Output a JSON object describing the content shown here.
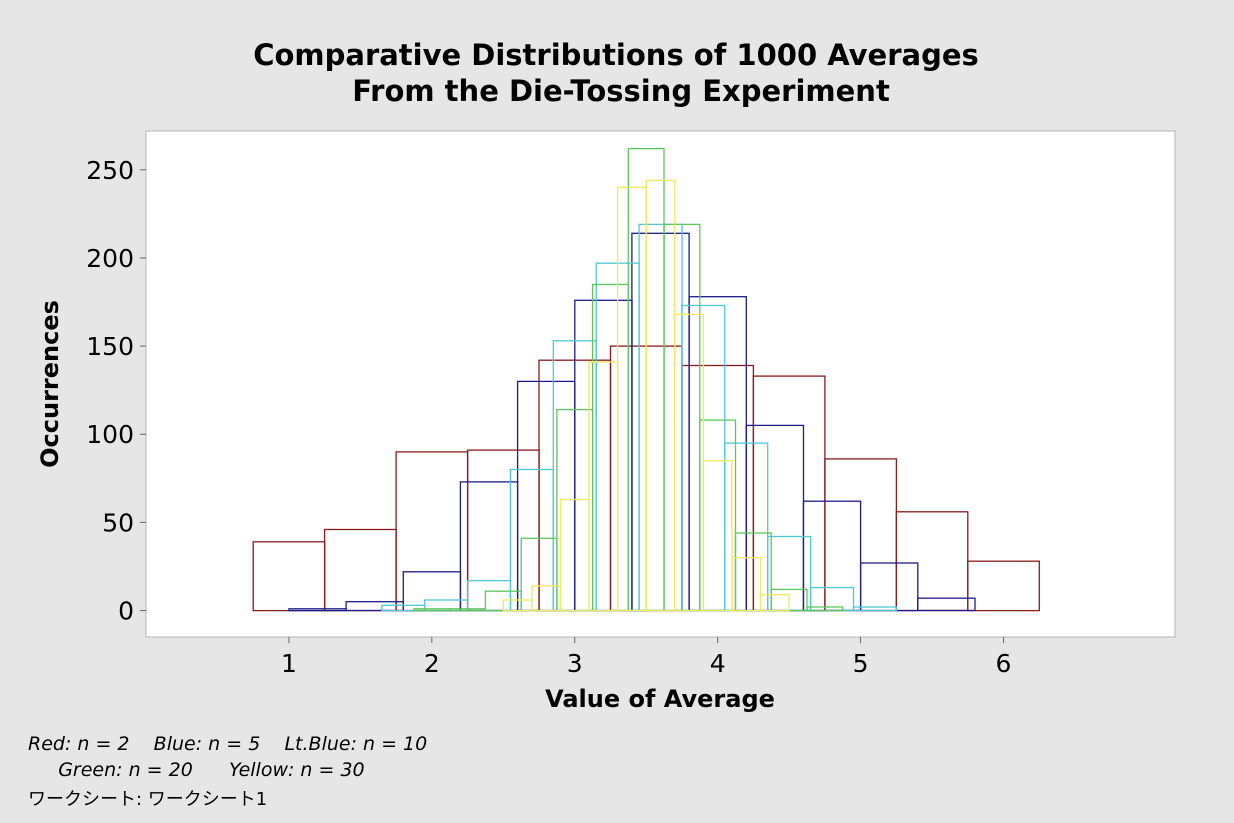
{
  "chart_data": {
    "type": "histogram",
    "title_line1": "Comparative Distributions of 1000 Averages",
    "title_line2": "From the Die-Tossing Experiment",
    "xlabel": "Value of Average",
    "ylabel": "Occurrences",
    "xlim": [
      0,
      7.2
    ],
    "ylim": [
      -15,
      272
    ],
    "xticks": [
      1,
      2,
      3,
      4,
      5,
      6
    ],
    "yticks": [
      0,
      50,
      100,
      150,
      200,
      250
    ],
    "grid": false,
    "series": [
      {
        "name": "Red: n = 2",
        "color": "#8b1a1a",
        "bin_width": 0.5,
        "bins": [
          {
            "start": 0.75,
            "count": 39
          },
          {
            "start": 1.25,
            "count": 46
          },
          {
            "start": 1.75,
            "count": 90
          },
          {
            "start": 2.25,
            "count": 91
          },
          {
            "start": 2.75,
            "count": 142
          },
          {
            "start": 3.25,
            "count": 150
          },
          {
            "start": 3.75,
            "count": 139
          },
          {
            "start": 4.25,
            "count": 133
          },
          {
            "start": 4.75,
            "count": 86
          },
          {
            "start": 5.25,
            "count": 56
          },
          {
            "start": 5.75,
            "count": 28
          }
        ]
      },
      {
        "name": "Blue: n = 5",
        "color": "#1c1c8a",
        "bin_width": 0.4,
        "bins": [
          {
            "start": 1.0,
            "count": 1
          },
          {
            "start": 1.4,
            "count": 5
          },
          {
            "start": 1.8,
            "count": 22
          },
          {
            "start": 2.2,
            "count": 73
          },
          {
            "start": 2.6,
            "count": 130
          },
          {
            "start": 3.0,
            "count": 176
          },
          {
            "start": 3.4,
            "count": 214
          },
          {
            "start": 3.8,
            "count": 178
          },
          {
            "start": 4.2,
            "count": 105
          },
          {
            "start": 4.6,
            "count": 62
          },
          {
            "start": 5.0,
            "count": 27
          },
          {
            "start": 5.4,
            "count": 7
          }
        ]
      },
      {
        "name": "Lt.Blue: n = 10",
        "color": "#4fc8d6",
        "bin_width": 0.3,
        "bins": [
          {
            "start": 1.65,
            "count": 3
          },
          {
            "start": 1.95,
            "count": 6
          },
          {
            "start": 2.25,
            "count": 17
          },
          {
            "start": 2.55,
            "count": 80
          },
          {
            "start": 2.85,
            "count": 153
          },
          {
            "start": 3.15,
            "count": 197
          },
          {
            "start": 3.45,
            "count": 219
          },
          {
            "start": 3.75,
            "count": 173
          },
          {
            "start": 4.05,
            "count": 95
          },
          {
            "start": 4.35,
            "count": 42
          },
          {
            "start": 4.65,
            "count": 13
          },
          {
            "start": 4.95,
            "count": 2
          }
        ]
      },
      {
        "name": "Green: n = 20",
        "color": "#5cc85c",
        "bin_width": 0.25,
        "bins": [
          {
            "start": 1.875,
            "count": 1
          },
          {
            "start": 2.125,
            "count": 1
          },
          {
            "start": 2.375,
            "count": 11
          },
          {
            "start": 2.625,
            "count": 41
          },
          {
            "start": 2.875,
            "count": 114
          },
          {
            "start": 3.125,
            "count": 185
          },
          {
            "start": 3.375,
            "count": 262
          },
          {
            "start": 3.625,
            "count": 219
          },
          {
            "start": 3.875,
            "count": 108
          },
          {
            "start": 4.125,
            "count": 44
          },
          {
            "start": 4.375,
            "count": 12
          },
          {
            "start": 4.625,
            "count": 2
          }
        ]
      },
      {
        "name": "Yellow: n = 30",
        "color": "#f2e85a",
        "bin_width": 0.2,
        "bins": [
          {
            "start": 2.5,
            "count": 6
          },
          {
            "start": 2.7,
            "count": 14
          },
          {
            "start": 2.9,
            "count": 63
          },
          {
            "start": 3.1,
            "count": 141
          },
          {
            "start": 3.3,
            "count": 240
          },
          {
            "start": 3.5,
            "count": 244
          },
          {
            "start": 3.7,
            "count": 168
          },
          {
            "start": 3.9,
            "count": 85
          },
          {
            "start": 4.1,
            "count": 30
          },
          {
            "start": 4.3,
            "count": 9
          }
        ]
      }
    ]
  },
  "footnote": {
    "line1": "Red: n = 2    Blue: n = 5    Lt.Blue: n = 10",
    "line2": "     Green: n = 20      Yellow: n = 30",
    "line3": "ワークシート: ワークシート1"
  }
}
